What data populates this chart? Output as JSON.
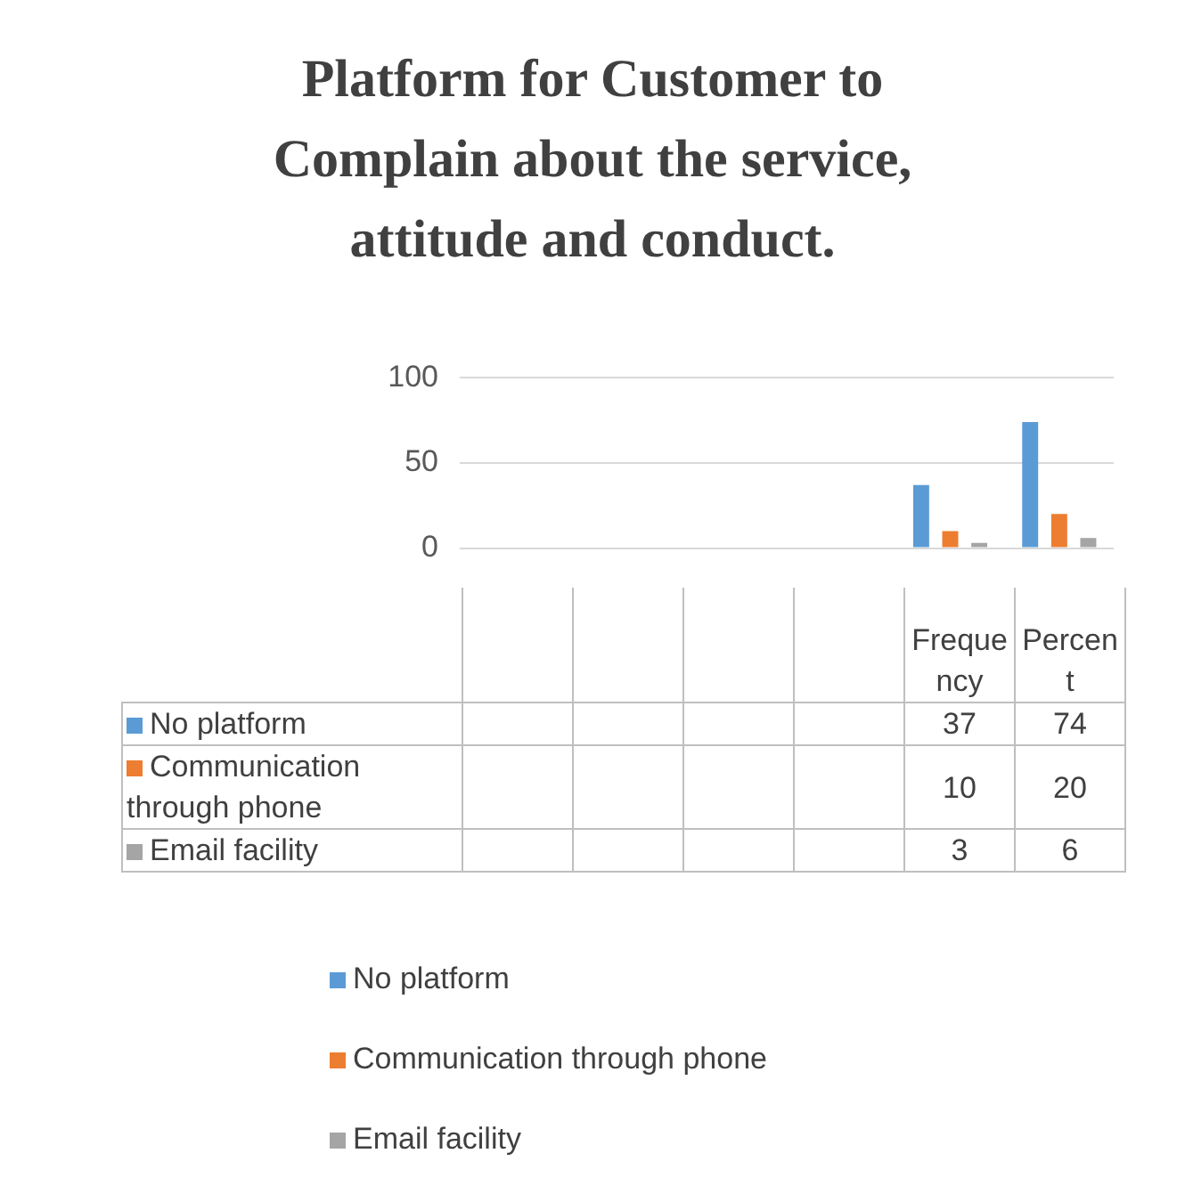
{
  "chart_data": {
    "type": "bar",
    "title": "Platform for Customer to Complain about the service, attitude and conduct.",
    "categories": [
      null,
      null,
      null,
      null,
      "Frequency",
      "Percent"
    ],
    "series": [
      {
        "name": "No platform",
        "color": "#5b9bd5",
        "values": [
          null,
          null,
          null,
          null,
          37,
          74
        ]
      },
      {
        "name": "Communication through phone",
        "color": "#ed7d31",
        "values": [
          null,
          null,
          null,
          null,
          10,
          20
        ]
      },
      {
        "name": "Email facility",
        "color": "#a5a5a5",
        "values": [
          null,
          null,
          null,
          null,
          3,
          6
        ]
      }
    ],
    "ylim": [
      0,
      100
    ],
    "yticks": [
      0,
      50,
      100
    ],
    "grid": "y",
    "legend": "bottom",
    "data_labels": true
  }
}
